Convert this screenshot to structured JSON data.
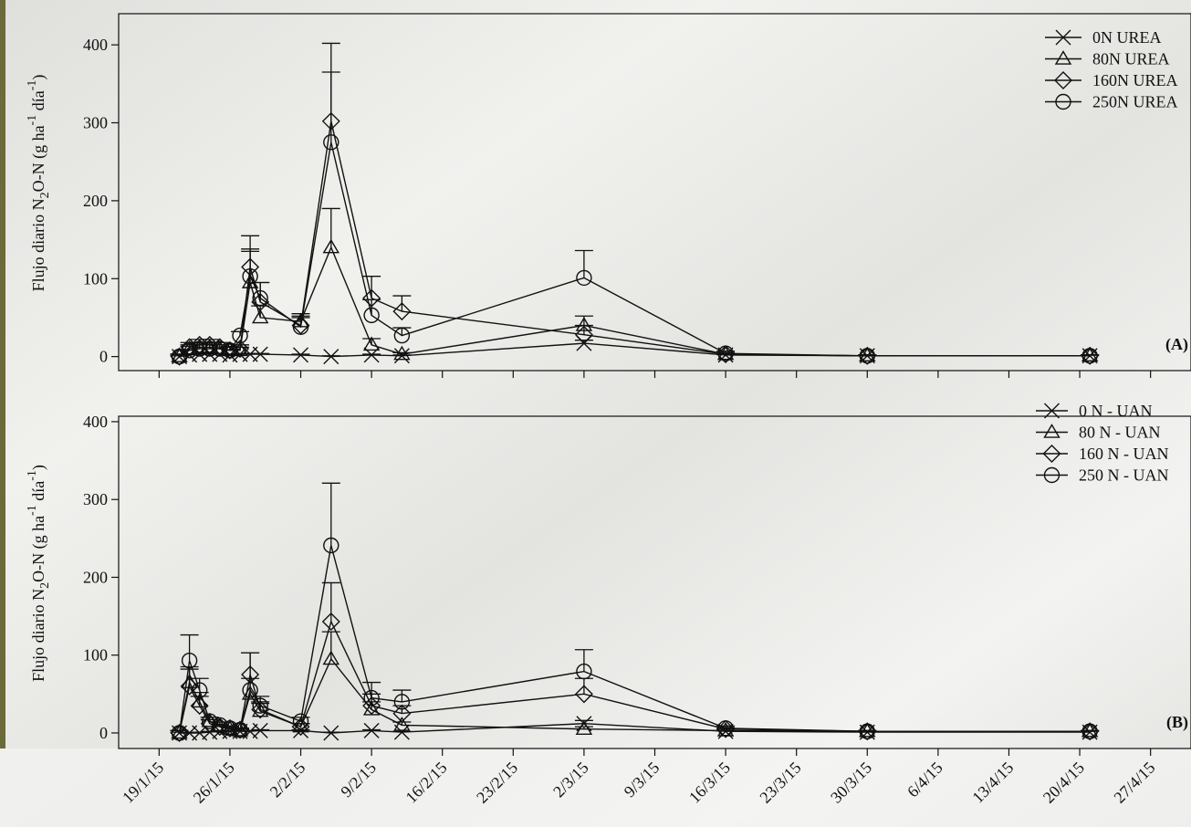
{
  "chart_data": [
    {
      "type": "line",
      "panel_label": "(A)",
      "y_label_parts": [
        "Flujo diario N",
        "2",
        "O-N (g ha",
        "-1",
        " día",
        "-1",
        ")"
      ],
      "x": [
        "2015-01-21",
        "2015-01-22",
        "2015-01-23",
        "2015-01-24",
        "2015-01-25",
        "2015-01-26",
        "2015-01-27",
        "2015-01-28",
        "2015-01-29",
        "2015-02-02",
        "2015-02-05",
        "2015-02-09",
        "2015-02-12",
        "2015-03-02",
        "2015-03-16",
        "2015-03-30",
        "2015-04-21"
      ],
      "xlim": [
        "2015-01-15",
        "2015-05-01"
      ],
      "xticks": [
        "2015-01-19",
        "2015-01-26",
        "2015-02-02",
        "2015-02-09",
        "2015-02-16",
        "2015-02-23",
        "2015-03-02",
        "2015-03-09",
        "2015-03-16",
        "2015-03-23",
        "2015-03-30",
        "2015-04-06",
        "2015-04-13",
        "2015-04-20",
        "2015-04-27"
      ],
      "ylim": [
        -18,
        440
      ],
      "yticks": [
        0,
        100,
        200,
        300,
        400
      ],
      "series": [
        {
          "name": "0N UREA",
          "marker": "x",
          "color": "#111111",
          "values": [
            0,
            2,
            3,
            3,
            3,
            2,
            3,
            3,
            3,
            2,
            0,
            2,
            1,
            17,
            2,
            1,
            1
          ],
          "errors": [
            1,
            1,
            1,
            1,
            1,
            1,
            1,
            1,
            1,
            1,
            1,
            1,
            1,
            4,
            1,
            1,
            1
          ]
        },
        {
          "name": "80N UREA",
          "marker": "triangle",
          "color": "#111111",
          "values": [
            0,
            10,
            12,
            12,
            10,
            8,
            8,
            95,
            50,
            45,
            140,
            15,
            3,
            40,
            3,
            1,
            1
          ],
          "errors": [
            3,
            5,
            6,
            6,
            5,
            4,
            4,
            40,
            15,
            10,
            50,
            8,
            2,
            12,
            2,
            1,
            1
          ]
        },
        {
          "name": "160N UREA",
          "marker": "diamond",
          "color": "#111111",
          "values": [
            0,
            12,
            15,
            15,
            12,
            8,
            10,
            115,
            70,
            40,
            302,
            75,
            58,
            28,
            3,
            1,
            1
          ],
          "errors": [
            3,
            6,
            7,
            7,
            6,
            5,
            5,
            40,
            25,
            12,
            100,
            28,
            20,
            12,
            2,
            1,
            1
          ]
        },
        {
          "name": "250N UREA",
          "marker": "circle",
          "color": "#111111",
          "values": [
            0,
            8,
            10,
            10,
            10,
            8,
            27,
            103,
            75,
            38,
            275,
            53,
            27,
            101,
            4,
            1,
            1
          ],
          "errors": [
            3,
            5,
            6,
            6,
            5,
            4,
            5,
            35,
            20,
            12,
            90,
            20,
            10,
            35,
            3,
            1,
            1
          ]
        }
      ]
    },
    {
      "type": "line",
      "panel_label": "(B)",
      "y_label_parts": [
        "Flujo diario N",
        "2",
        "O-N (g ha",
        "-1",
        " día",
        "-1",
        ")"
      ],
      "x": [
        "2015-01-21",
        "2015-01-22",
        "2015-01-23",
        "2015-01-24",
        "2015-01-25",
        "2015-01-26",
        "2015-01-27",
        "2015-01-28",
        "2015-01-29",
        "2015-02-02",
        "2015-02-05",
        "2015-02-09",
        "2015-02-12",
        "2015-03-02",
        "2015-03-16",
        "2015-03-30",
        "2015-04-21"
      ],
      "xlim": [
        "2015-01-15",
        "2015-05-01"
      ],
      "xticks": [
        {
          "value": "2015-01-19",
          "label": "19/1/15"
        },
        {
          "value": "2015-01-26",
          "label": "26/1/15"
        },
        {
          "value": "2015-02-02",
          "label": "2/2/15"
        },
        {
          "value": "2015-02-09",
          "label": "9/2/15"
        },
        {
          "value": "2015-02-16",
          "label": "16/2/15"
        },
        {
          "value": "2015-02-23",
          "label": "23/2/15"
        },
        {
          "value": "2015-03-02",
          "label": "2/3/15"
        },
        {
          "value": "2015-03-09",
          "label": "9/3/15"
        },
        {
          "value": "2015-03-16",
          "label": "16/3/15"
        },
        {
          "value": "2015-03-23",
          "label": "23/3/15"
        },
        {
          "value": "2015-03-30",
          "label": "30/3/15"
        },
        {
          "value": "2015-04-06",
          "label": "6/4/15"
        },
        {
          "value": "2015-04-13",
          "label": "13/4/15"
        },
        {
          "value": "2015-04-20",
          "label": "20/4/15"
        },
        {
          "value": "2015-04-27",
          "label": "27/4/15"
        }
      ],
      "ylim": [
        -20,
        407
      ],
      "yticks": [
        0,
        100,
        200,
        300,
        400
      ],
      "series": [
        {
          "name": "0 N - UAN",
          "marker": "x",
          "color": "#111111",
          "values": [
            0,
            0,
            0,
            1,
            2,
            2,
            2,
            2,
            3,
            3,
            0,
            3,
            1,
            12,
            2,
            1,
            1
          ],
          "errors": [
            1,
            1,
            1,
            1,
            1,
            1,
            1,
            1,
            1,
            1,
            1,
            1,
            1,
            4,
            1,
            1,
            1
          ]
        },
        {
          "name": "80 N - UAN",
          "marker": "triangle",
          "color": "#111111",
          "values": [
            0,
            65,
            40,
            15,
            8,
            5,
            3,
            50,
            28,
            8,
            95,
            30,
            10,
            5,
            3,
            2,
            2
          ],
          "errors": [
            3,
            20,
            12,
            5,
            3,
            2,
            2,
            20,
            10,
            4,
            35,
            10,
            4,
            3,
            2,
            1,
            1
          ]
        },
        {
          "name": "160 N - UAN",
          "marker": "diamond",
          "color": "#111111",
          "values": [
            0,
            60,
            35,
            12,
            8,
            6,
            4,
            75,
            30,
            8,
            143,
            35,
            25,
            50,
            5,
            2,
            2
          ],
          "errors": [
            3,
            22,
            12,
            5,
            3,
            2,
            2,
            28,
            10,
            4,
            50,
            15,
            10,
            20,
            2,
            1,
            1
          ]
        },
        {
          "name": "250 N - UAN",
          "marker": "circle",
          "color": "#111111",
          "values": [
            0,
            93,
            55,
            15,
            10,
            6,
            4,
            55,
            35,
            15,
            241,
            45,
            40,
            79,
            6,
            2,
            2
          ],
          "errors": [
            3,
            33,
            15,
            5,
            4,
            3,
            2,
            48,
            12,
            5,
            80,
            20,
            15,
            28,
            3,
            1,
            1
          ]
        }
      ]
    }
  ]
}
